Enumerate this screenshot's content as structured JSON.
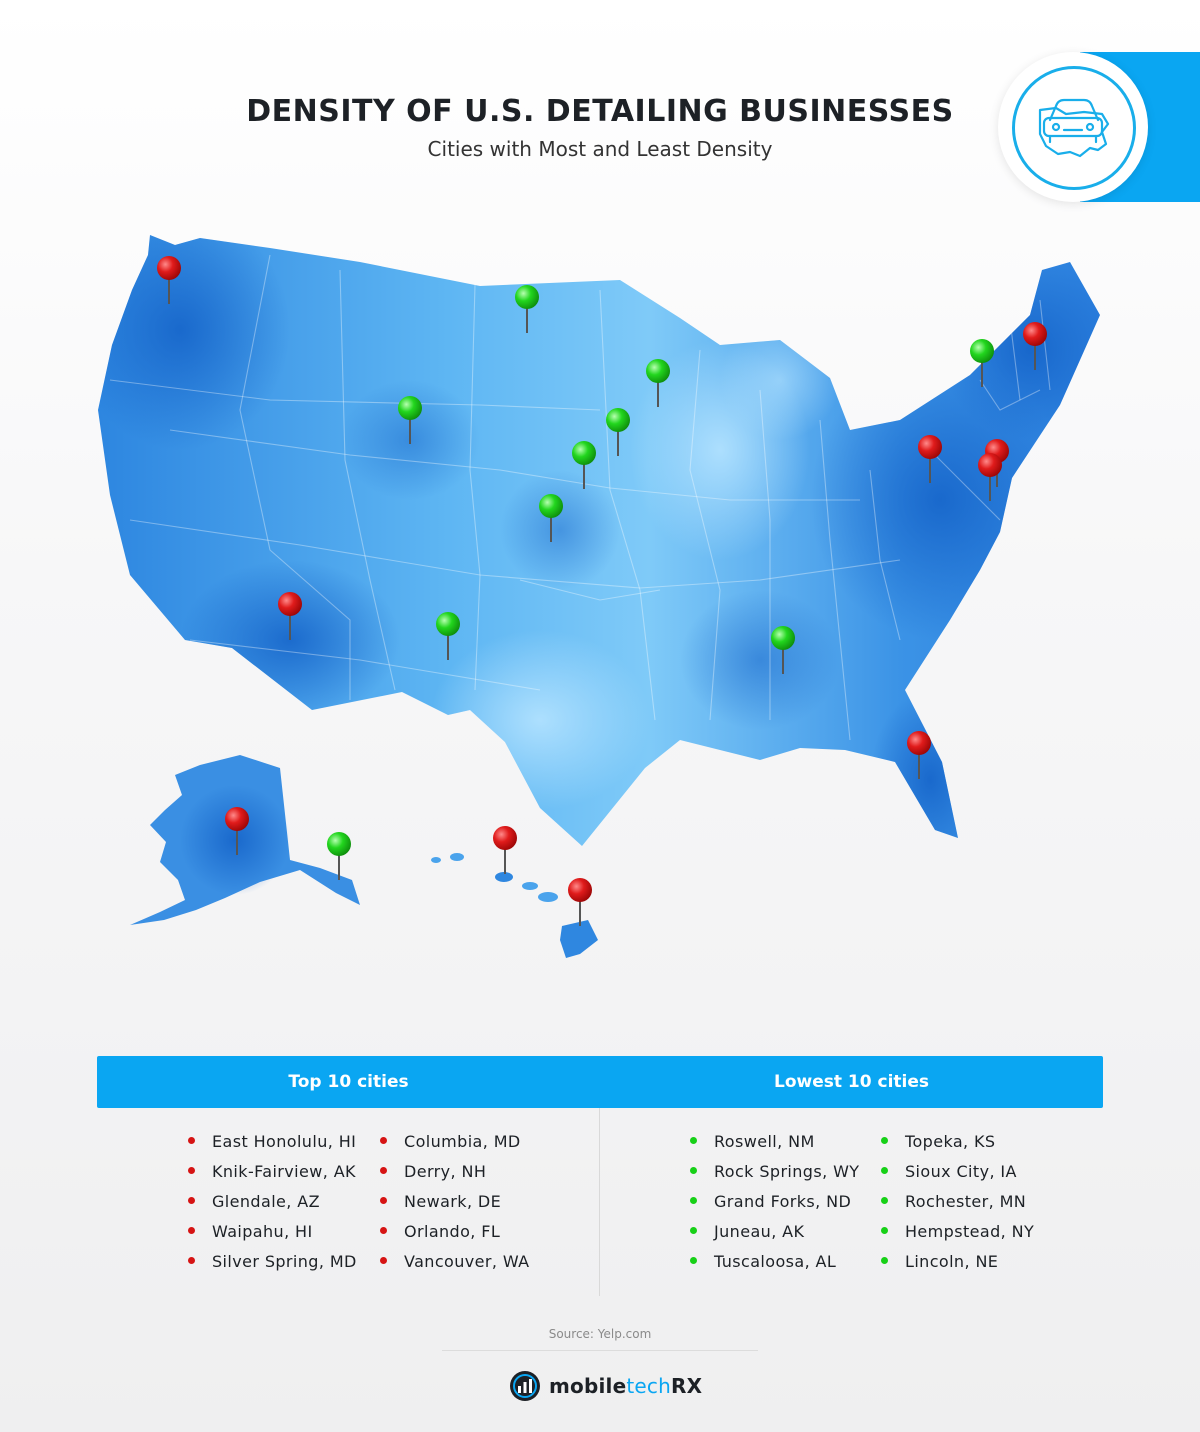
{
  "header": {
    "title": "DENSITY OF U.S. DETAILING BUSINESSES",
    "subtitle": "Cities with Most and Least Density",
    "badge_icon": "car-on-map-icon"
  },
  "colors": {
    "accent": "#0aa6f2",
    "map_light": "#8fd3fa",
    "map_dark": "#1f74d4",
    "top_pin": "#d61414",
    "lowest_pin": "#17d017"
  },
  "legend": {
    "top_heading": "Top 10 cities",
    "lowest_heading": "Lowest 10 cities",
    "top_cities": [
      "East Honolulu, HI",
      "Knik-Fairview, AK",
      "Glendale, AZ",
      "Waipahu, HI",
      "Silver Spring, MD",
      "Columbia, MD",
      "Derry, NH",
      "Newark, DE",
      "Orlando, FL",
      "Vancouver, WA"
    ],
    "lowest_cities": [
      "Roswell, NM",
      "Rock Springs, WY",
      "Grand Forks, ND",
      "Juneau, AK",
      "Tuscaloosa, AL",
      "Topeka, KS",
      "Sioux City, IA",
      "Rochester, MN",
      "Hempstead, NY",
      "Lincoln, NE"
    ]
  },
  "footer": {
    "source": "Source: Yelp.com",
    "brand_part1": "mobile",
    "brand_part2": "tech",
    "brand_part3": "RX"
  }
}
